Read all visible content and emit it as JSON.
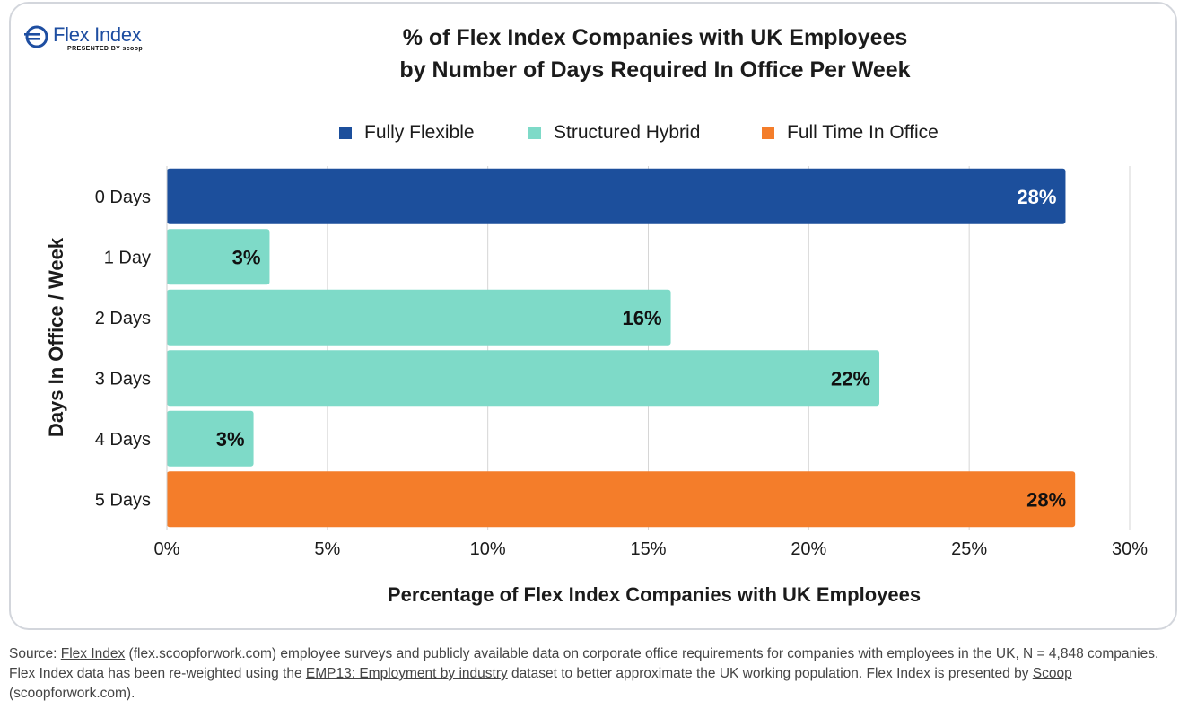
{
  "header": {
    "logo_text": "Flex Index",
    "logo_subtext": "PRESENTED BY scoop",
    "title_line1": "% of Flex Index Companies with UK Employees",
    "title_line2": "by Number of Days Required In Office Per Week"
  },
  "legend": [
    {
      "label": "Fully Flexible",
      "color": "#1c4f9c"
    },
    {
      "label": "Structured Hybrid",
      "color": "#7edac8"
    },
    {
      "label": "Full Time In Office",
      "color": "#f47d2a"
    }
  ],
  "chart_data": {
    "type": "bar",
    "orientation": "horizontal",
    "categories": [
      "0 Days",
      "1 Day",
      "2 Days",
      "3 Days",
      "4 Days",
      "5 Days"
    ],
    "values": [
      28,
      3.2,
      15.7,
      22.2,
      2.7,
      28.3
    ],
    "data_labels": [
      "28%",
      "3%",
      "16%",
      "22%",
      "3%",
      "28%"
    ],
    "bar_groups": [
      "Fully Flexible",
      "Structured Hybrid",
      "Structured Hybrid",
      "Structured Hybrid",
      "Structured Hybrid",
      "Full Time In Office"
    ],
    "label_colors": [
      "#ffffff",
      "#111111",
      "#111111",
      "#111111",
      "#111111",
      "#111111"
    ],
    "xlim": [
      0,
      30
    ],
    "xticks": [
      "0%",
      "5%",
      "10%",
      "15%",
      "20%",
      "25%",
      "30%"
    ],
    "xtick_values": [
      0,
      5,
      10,
      15,
      20,
      25,
      30
    ],
    "xlabel": "Percentage of Flex Index Companies with UK Employees",
    "ylabel": "Days In Office / Week",
    "grid": true,
    "legend_position": "top-center"
  },
  "footer": {
    "t1": "Source: ",
    "link1": "Flex Index",
    "t2": " (flex.scoopforwork.com) employee surveys and publicly available data on corporate office requirements for companies with employees in the UK, N = 4,848 companies. Flex Index data has been re-weighted using the ",
    "link2": "EMP13: Employment by industry",
    "t3": " dataset to better approximate the UK working population. Flex Index is presented by ",
    "link3": "Scoop",
    "t4": " (scoopforwork.com)."
  }
}
